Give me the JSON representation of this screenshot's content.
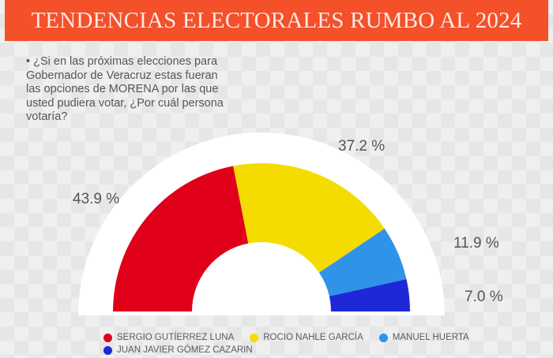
{
  "header": {
    "title": "TENDENCIAS ELECTORALES RUMBO AL 2024"
  },
  "question": "• ¿Si en las próximas elecciones para Gobernador de Veracruz estas fueran las opciones de MORENA por las que usted pudiera votar, ¿Por cuál persona  votaría?",
  "labels": {
    "sergio": "43.9 %",
    "rocio": "37.2 %",
    "manuel": "11.9 %",
    "juan": "7.0 %"
  },
  "legend": [
    {
      "name": "SERGIO GUTÍERREZ LUNA",
      "color": "#e0001a"
    },
    {
      "name": "ROCIO NAHLE GARCÍA",
      "color": "#f5dc00"
    },
    {
      "name": "MANUEL HUERTA",
      "color": "#2f93e8"
    },
    {
      "name": "JUAN JAVIER GÓMEZ CAZARIN",
      "color": "#1e28d8"
    }
  ],
  "chart_data": {
    "type": "pie",
    "subtype": "half-donut",
    "title": "TENDENCIAS ELECTORALES RUMBO AL 2024",
    "categories": [
      "SERGIO GUTÍERREZ LUNA",
      "ROCIO NAHLE GARCÍA",
      "MANUEL HUERTA",
      "JUAN JAVIER GÓMEZ CAZARIN"
    ],
    "values": [
      43.9,
      37.2,
      11.9,
      7.0
    ],
    "colors": [
      "#e0001a",
      "#f5dc00",
      "#2f93e8",
      "#1e28d8"
    ],
    "legend_position": "bottom"
  }
}
